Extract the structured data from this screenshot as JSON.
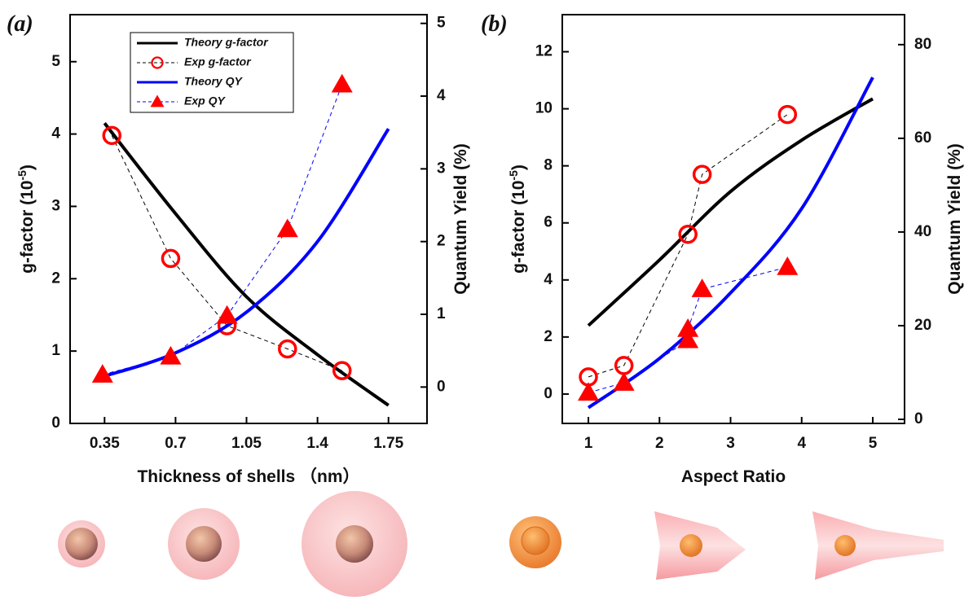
{
  "chart_data": [
    {
      "type": "line",
      "panel_label": "(a)",
      "x_label": "Thickness of shells （nm）",
      "y_label": [
        "g-factor (10",
        "-5",
        ")"
      ],
      "y2_label": "Quantum Yield (%)",
      "xlim": [
        0.18,
        1.94
      ],
      "xticks": [
        0.35,
        0.7,
        1.05,
        1.4,
        1.75
      ],
      "ylim": [
        0,
        5.65
      ],
      "yticks": [
        0,
        1,
        2,
        3,
        4,
        5
      ],
      "y2lim": [
        -0.5,
        5.12
      ],
      "y2ticks": [
        0,
        1,
        2,
        3,
        4,
        5
      ],
      "legend": "upper left",
      "series": [
        {
          "name": "Theory g-factor",
          "color": "#000000",
          "line": "solid",
          "marker": "none",
          "axis": "y",
          "x": [
            0.35,
            0.7,
            1.05,
            1.4,
            1.75
          ],
          "values": [
            4.15,
            2.9,
            1.75,
            0.95,
            0.25
          ]
        },
        {
          "name": "Exp g-factor",
          "color": "#ff0000",
          "line_color": "#000000",
          "line": "dashed",
          "marker": "circle",
          "axis": "y",
          "x": [
            0.386,
            0.676,
            0.954,
            1.252,
            1.521
          ],
          "values": [
            3.98,
            2.28,
            1.35,
            1.03,
            0.73
          ]
        },
        {
          "name": "Theory QY",
          "color": "#0000ff",
          "line": "solid",
          "marker": "none",
          "axis": "y2",
          "x": [
            0.35,
            0.7,
            1.05,
            1.4,
            1.75
          ],
          "values": [
            0.15,
            0.47,
            1.03,
            2.0,
            3.55
          ]
        },
        {
          "name": "Exp QY",
          "color": "#ff0000",
          "line_color": "#0000ff",
          "line": "dashed",
          "marker": "triangle",
          "axis": "y2",
          "x": [
            0.34,
            0.676,
            0.954,
            1.252,
            1.521
          ],
          "values": [
            0.17,
            0.42,
            0.98,
            2.17,
            4.16
          ]
        }
      ]
    },
    {
      "type": "line",
      "panel_label": "(b)",
      "x_label": "Aspect Ratio",
      "y_label": [
        "g-factor (10",
        "-5",
        ")"
      ],
      "y2_label": "Quantum Yield (%)",
      "xlim": [
        0.633,
        5.447
      ],
      "xticks": [
        1,
        2,
        3,
        4,
        5
      ],
      "ylim": [
        -1.03,
        13.3
      ],
      "yticks": [
        0,
        2,
        4,
        6,
        8,
        10,
        12
      ],
      "y2lim": [
        -0.87,
        86.4
      ],
      "y2ticks": [
        0,
        20,
        40,
        60,
        80
      ],
      "series": [
        {
          "color": "#000000",
          "line": "solid",
          "marker": "none",
          "axis": "y",
          "x": [
            1,
            2,
            3,
            4,
            5
          ],
          "values": [
            2.4,
            4.7,
            7.1,
            8.9,
            10.35
          ]
        },
        {
          "color": "#ff0000",
          "line_color": "#000000",
          "line": "dashed",
          "marker": "circle",
          "axis": "y",
          "x": [
            1,
            1.5,
            2.4,
            2.6,
            3.8
          ],
          "values": [
            0.6,
            1.0,
            5.6,
            7.7,
            9.8
          ]
        },
        {
          "color": "#0000ff",
          "line": "solid",
          "marker": "none",
          "axis": "y2",
          "x": [
            1,
            2,
            3,
            4,
            5
          ],
          "values": [
            2.5,
            13,
            27,
            45,
            73
          ]
        },
        {
          "color": "#ff0000",
          "line_color": "#0000ff",
          "line": "dashed",
          "marker": "triangle",
          "axis": "y2",
          "x": [
            1,
            1.5,
            2.4,
            2.4,
            2.6,
            3.8
          ],
          "values": [
            5.7,
            7.8,
            16.9,
            19.3,
            27.8,
            32.5
          ]
        }
      ]
    }
  ]
}
